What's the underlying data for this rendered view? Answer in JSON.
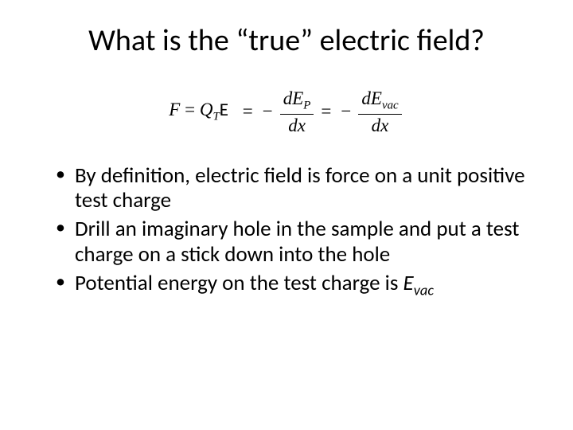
{
  "title": "What is the “true” electric field?",
  "equation": {
    "lhs_F": "F",
    "eq": "=",
    "Q": "Q",
    "Q_sub": "T",
    "E": "E",
    "neg": "−",
    "d": "d",
    "E_sym": "E",
    "P_sub": "P",
    "vac_sub": "vac",
    "x": "x"
  },
  "bullets": {
    "b1": "By definition, electric field is force on a unit positive test charge",
    "b2": "Drill an imaginary hole in the sample and put a test charge on a stick down into the hole",
    "b3_prefix": "Potential energy on the test charge is ",
    "b3_E": "E",
    "b3_vac": "vac"
  },
  "colors": {
    "text": "#000000",
    "background": "#ffffff"
  }
}
